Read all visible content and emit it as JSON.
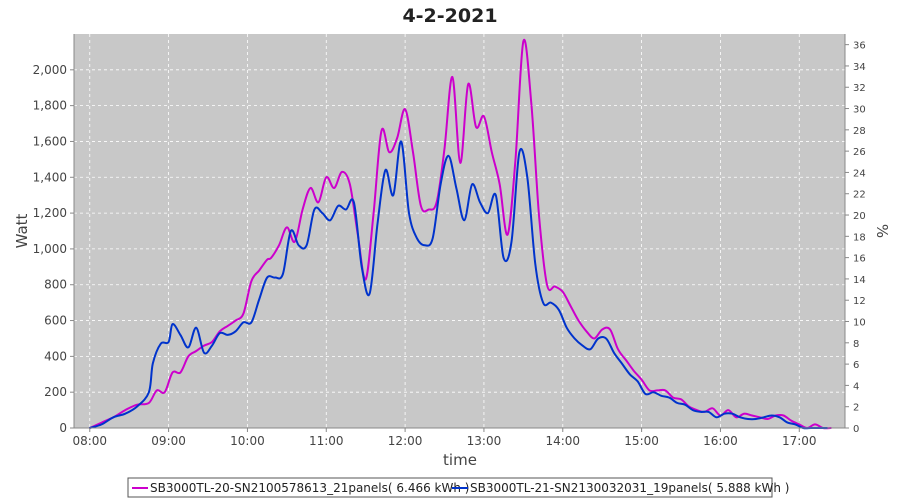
{
  "chart_data": {
    "type": "line",
    "title": "4-2-2021",
    "xlabel": "time",
    "ylabel": "Watt",
    "y2label": "%",
    "xlim": [
      7.8,
      17.58
    ],
    "ylim": [
      0,
      2200
    ],
    "y2lim": [
      0,
      37
    ],
    "x_ticks": [
      "08:00",
      "09:00",
      "10:00",
      "11:00",
      "12:00",
      "13:00",
      "14:00",
      "15:00",
      "16:00",
      "17:00"
    ],
    "x_tick_values": [
      8,
      9,
      10,
      11,
      12,
      13,
      14,
      15,
      16,
      17
    ],
    "y_ticks": [
      "0",
      "200",
      "400",
      "600",
      "800",
      "1,000",
      "1,200",
      "1,400",
      "1,600",
      "1,800",
      "2,000"
    ],
    "y_tick_values": [
      0,
      200,
      400,
      600,
      800,
      1000,
      1200,
      1400,
      1600,
      1800,
      2000
    ],
    "y2_ticks": [
      "0",
      "2",
      "4",
      "6",
      "8",
      "10",
      "12",
      "14",
      "16",
      "18",
      "20",
      "22",
      "24",
      "26",
      "28",
      "30",
      "32",
      "34",
      "36"
    ],
    "y2_tick_values": [
      0,
      2,
      4,
      6,
      8,
      10,
      12,
      14,
      16,
      18,
      20,
      22,
      24,
      26,
      28,
      30,
      32,
      34,
      36
    ],
    "grid": true,
    "legend_position": "bottom",
    "colors": {
      "plot_bg": "#c8c8c8",
      "grid": "#ffffff"
    },
    "series": [
      {
        "name": "SB3000TL-20-SN2100578613_21panels( 6.466 kWh )",
        "color": "#cc00cc",
        "x": [
          8.0,
          8.15,
          8.3,
          8.45,
          8.6,
          8.75,
          8.85,
          8.95,
          9.05,
          9.15,
          9.25,
          9.35,
          9.45,
          9.55,
          9.65,
          9.75,
          9.85,
          9.95,
          10.05,
          10.15,
          10.25,
          10.3,
          10.4,
          10.5,
          10.6,
          10.7,
          10.8,
          10.9,
          11.0,
          11.1,
          11.2,
          11.3,
          11.4,
          11.5,
          11.6,
          11.7,
          11.8,
          11.9,
          12.0,
          12.1,
          12.2,
          12.3,
          12.4,
          12.5,
          12.6,
          12.7,
          12.8,
          12.9,
          13.0,
          13.1,
          13.2,
          13.3,
          13.4,
          13.5,
          13.6,
          13.7,
          13.8,
          13.9,
          14.0,
          14.1,
          14.2,
          14.3,
          14.4,
          14.5,
          14.6,
          14.7,
          14.8,
          14.9,
          15.0,
          15.1,
          15.2,
          15.3,
          15.4,
          15.5,
          15.6,
          15.7,
          15.8,
          15.9,
          16.0,
          16.1,
          16.2,
          16.3,
          16.4,
          16.5,
          16.6,
          16.7,
          16.8,
          16.9,
          17.0,
          17.1,
          17.2,
          17.3,
          17.4
        ],
        "y": [
          0,
          30,
          60,
          100,
          130,
          140,
          210,
          200,
          310,
          310,
          400,
          430,
          460,
          480,
          540,
          570,
          600,
          640,
          820,
          880,
          940,
          950,
          1020,
          1120,
          1040,
          1220,
          1340,
          1260,
          1400,
          1340,
          1430,
          1360,
          1080,
          830,
          1200,
          1660,
          1540,
          1620,
          1780,
          1540,
          1240,
          1220,
          1260,
          1560,
          1960,
          1480,
          1920,
          1680,
          1740,
          1540,
          1360,
          1080,
          1500,
          2160,
          1820,
          1180,
          800,
          790,
          760,
          680,
          600,
          540,
          500,
          550,
          550,
          440,
          380,
          320,
          270,
          210,
          210,
          210,
          170,
          160,
          120,
          100,
          90,
          110,
          70,
          100,
          60,
          80,
          70,
          60,
          50,
          70,
          70,
          40,
          20,
          0,
          20,
          0,
          0
        ]
      },
      {
        "name": "SB3000TL-21-SN2130032031_19panels( 5.888 kWh )",
        "color": "#0033cc",
        "x": [
          8.0,
          8.15,
          8.3,
          8.45,
          8.6,
          8.75,
          8.8,
          8.9,
          9.0,
          9.05,
          9.15,
          9.25,
          9.35,
          9.45,
          9.55,
          9.65,
          9.75,
          9.85,
          9.95,
          10.05,
          10.15,
          10.25,
          10.35,
          10.45,
          10.55,
          10.65,
          10.75,
          10.85,
          10.95,
          11.05,
          11.15,
          11.25,
          11.35,
          11.45,
          11.55,
          11.65,
          11.75,
          11.85,
          11.95,
          12.05,
          12.15,
          12.25,
          12.35,
          12.45,
          12.55,
          12.65,
          12.75,
          12.85,
          12.95,
          13.05,
          13.15,
          13.25,
          13.35,
          13.45,
          13.55,
          13.65,
          13.75,
          13.85,
          13.95,
          14.05,
          14.15,
          14.25,
          14.35,
          14.45,
          14.55,
          14.65,
          14.75,
          14.85,
          14.95,
          15.05,
          15.15,
          15.25,
          15.35,
          15.45,
          15.55,
          15.65,
          15.75,
          15.85,
          15.95,
          16.05,
          16.15,
          16.25,
          16.35,
          16.45,
          16.55,
          16.65,
          16.75,
          16.85,
          16.95,
          17.05,
          17.15,
          17.25,
          17.35
        ],
        "y": [
          0,
          20,
          60,
          80,
          120,
          200,
          360,
          470,
          480,
          580,
          520,
          450,
          560,
          420,
          460,
          530,
          520,
          540,
          590,
          590,
          720,
          840,
          840,
          860,
          1100,
          1020,
          1020,
          1220,
          1200,
          1160,
          1240,
          1220,
          1260,
          900,
          750,
          1140,
          1440,
          1300,
          1600,
          1200,
          1060,
          1020,
          1060,
          1360,
          1520,
          1340,
          1160,
          1360,
          1260,
          1200,
          1300,
          950,
          1040,
          1540,
          1400,
          920,
          700,
          700,
          660,
          560,
          500,
          460,
          440,
          500,
          500,
          420,
          360,
          300,
          260,
          190,
          200,
          180,
          170,
          140,
          130,
          100,
          90,
          90,
          60,
          80,
          80,
          60,
          50,
          50,
          60,
          70,
          60,
          30,
          20,
          0,
          0,
          0,
          0
        ]
      }
    ]
  }
}
